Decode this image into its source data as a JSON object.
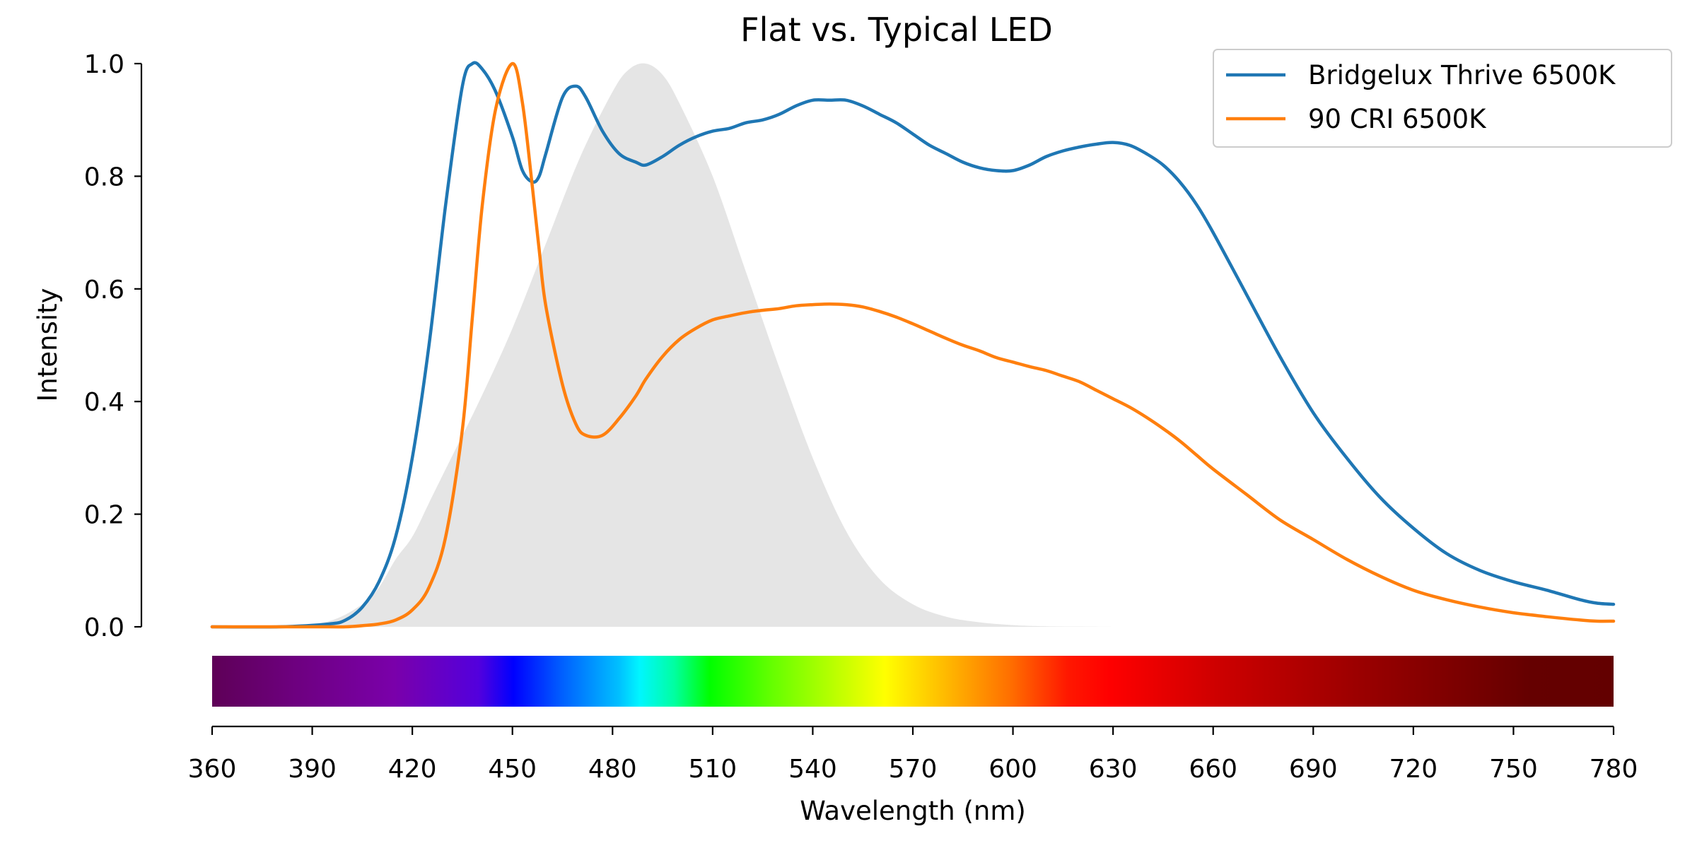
{
  "chart_data": {
    "type": "line",
    "title": "Flat vs. Typical LED",
    "xlabel": "Wavelength (nm)",
    "ylabel": "Intensity",
    "xlim": [
      360,
      780
    ],
    "ylim": [
      0,
      1.0
    ],
    "x_ticks": [
      "360",
      "390",
      "420",
      "450",
      "480",
      "510",
      "540",
      "570",
      "600",
      "630",
      "660",
      "690",
      "720",
      "750",
      "780"
    ],
    "y_ticks": [
      "0.0",
      "0.2",
      "0.4",
      "0.6",
      "0.8",
      "1.0"
    ],
    "grid": false,
    "legend": "top-right",
    "spectrum_bar": true,
    "x": [
      360,
      380,
      395,
      400,
      405,
      410,
      415,
      420,
      425,
      430,
      435,
      438,
      441,
      445,
      450,
      453,
      456,
      458,
      460,
      465,
      469,
      472,
      477,
      482,
      487,
      490,
      495,
      500,
      505,
      510,
      515,
      520,
      525,
      530,
      535,
      540,
      545,
      550,
      555,
      560,
      565,
      570,
      575,
      580,
      585,
      590,
      595,
      600,
      605,
      610,
      615,
      620,
      625,
      630,
      635,
      640,
      645,
      650,
      655,
      660,
      670,
      680,
      690,
      700,
      710,
      720,
      730,
      740,
      750,
      760,
      770,
      775,
      780
    ],
    "series": [
      {
        "name": "Bridgelux Thrive 6500K",
        "color": "#1f77b4",
        "values": [
          0.0,
          0.0,
          0.005,
          0.012,
          0.035,
          0.08,
          0.16,
          0.3,
          0.5,
          0.75,
          0.96,
          1.0,
          0.99,
          0.95,
          0.87,
          0.81,
          0.79,
          0.8,
          0.84,
          0.94,
          0.96,
          0.94,
          0.88,
          0.84,
          0.825,
          0.82,
          0.835,
          0.855,
          0.87,
          0.88,
          0.885,
          0.895,
          0.9,
          0.91,
          0.925,
          0.935,
          0.935,
          0.935,
          0.925,
          0.91,
          0.895,
          0.875,
          0.855,
          0.84,
          0.825,
          0.815,
          0.81,
          0.81,
          0.82,
          0.835,
          0.845,
          0.852,
          0.857,
          0.86,
          0.855,
          0.84,
          0.82,
          0.79,
          0.75,
          0.7,
          0.59,
          0.48,
          0.38,
          0.3,
          0.23,
          0.175,
          0.13,
          0.1,
          0.08,
          0.065,
          0.048,
          0.042,
          0.04
        ]
      },
      {
        "name": "90 CRI 6500K",
        "color": "#ff7f0e",
        "values": [
          0.0,
          0.0,
          0.0,
          0.0,
          0.002,
          0.005,
          0.012,
          0.03,
          0.07,
          0.16,
          0.35,
          0.55,
          0.75,
          0.92,
          1.0,
          0.93,
          0.78,
          0.67,
          0.57,
          0.43,
          0.36,
          0.34,
          0.34,
          0.37,
          0.41,
          0.44,
          0.48,
          0.51,
          0.53,
          0.545,
          0.552,
          0.558,
          0.562,
          0.565,
          0.57,
          0.572,
          0.573,
          0.572,
          0.568,
          0.56,
          0.55,
          0.538,
          0.525,
          0.512,
          0.5,
          0.49,
          0.478,
          0.47,
          0.462,
          0.455,
          0.445,
          0.435,
          0.42,
          0.405,
          0.39,
          0.372,
          0.352,
          0.33,
          0.305,
          0.28,
          0.235,
          0.19,
          0.155,
          0.12,
          0.09,
          0.065,
          0.048,
          0.035,
          0.025,
          0.018,
          0.012,
          0.01,
          0.01
        ]
      }
    ],
    "reference_curve": {
      "x": [
        380,
        395,
        405,
        410,
        415,
        420,
        425,
        430,
        440,
        450,
        460,
        470,
        480,
        485,
        490,
        495,
        500,
        510,
        520,
        530,
        540,
        550,
        560,
        570,
        580,
        590,
        600,
        610,
        630
      ],
      "values": [
        0.0,
        0.01,
        0.04,
        0.07,
        0.12,
        0.16,
        0.22,
        0.28,
        0.4,
        0.53,
        0.68,
        0.83,
        0.95,
        0.99,
        1.0,
        0.98,
        0.93,
        0.8,
        0.63,
        0.46,
        0.3,
        0.17,
        0.085,
        0.04,
        0.018,
        0.008,
        0.003,
        0.001,
        0.0
      ],
      "color": "#e5e5e5"
    }
  }
}
